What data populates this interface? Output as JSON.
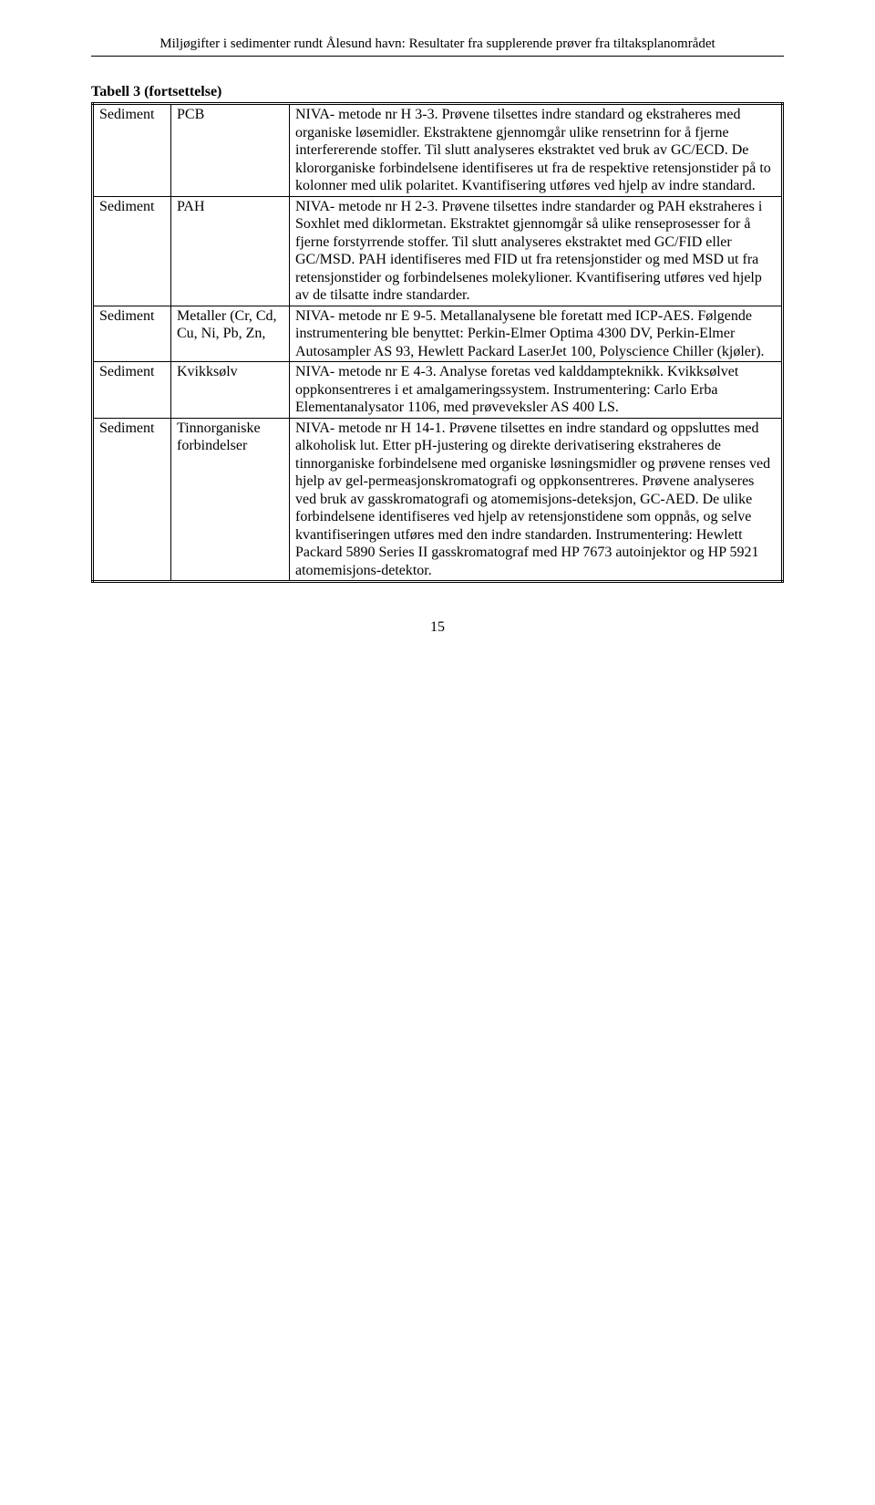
{
  "header": "Miljøgifter i sedimenter rundt Ålesund havn: Resultater fra supplerende prøver fra tiltaksplanområdet",
  "caption": "Tabell 3 (fortsettelse)",
  "rows": [
    {
      "c1": "Sediment",
      "c2": "PCB",
      "c3": "NIVA- metode nr H 3-3. Prøvene tilsettes indre standard og ekstraheres med organiske løsemidler. Ekstraktene gjennomgår ulike rensetrinn for å fjerne interfererende stoffer. Til slutt analyseres ekstraktet ved bruk av GC/ECD. De klororganiske forbindelsene identifiseres ut fra de respektive retensjonstider på to kolonner med ulik polaritet. Kvantifisering utføres ved hjelp av indre standard."
    },
    {
      "c1": "Sediment",
      "c2": "PAH",
      "c3": "NIVA- metode nr H 2-3. Prøvene tilsettes indre standarder og PAH ekstraheres i Soxhlet med diklormetan. Ekstraktet gjennomgår så ulike renseprosesser for å fjerne forstyrrende stoffer. Til slutt analyseres ekstraktet med GC/FID eller GC/MSD. PAH identifiseres med FID ut fra retensjonstider og med MSD ut fra retensjonstider og forbindelsenes molekylioner. Kvantifisering utføres ved hjelp av de tilsatte indre standarder."
    },
    {
      "c1": "Sediment",
      "c2": "Metaller (Cr, Cd, Cu, Ni, Pb, Zn,",
      "c3": "NIVA- metode nr E 9-5. Metallanalysene ble foretatt med ICP-AES. Følgende instrumentering ble benyttet: Perkin-Elmer Optima 4300 DV, Perkin-Elmer Autosampler AS 93, Hewlett Packard LaserJet 100, Polyscience Chiller (kjøler)."
    },
    {
      "c1": "Sediment",
      "c2": "Kvikksølv",
      "c3": "NIVA- metode nr E 4-3. Analyse foretas ved kalddampteknikk. Kvikksølvet oppkonsentreres i et amalgameringssystem. Instrumentering: Carlo Erba Elementanalysator 1106, med prøveveksler AS 400 LS."
    },
    {
      "c1": "Sediment",
      "c2": "Tinnorganiske forbindelser",
      "c3": "NIVA- metode nr H 14-1. Prøvene tilsettes en indre standard og oppsluttes med alkoholisk lut. Etter pH-justering og direkte derivatisering ekstraheres de tinnorganiske forbindelsene med organiske løsningsmidler og prøvene renses ved hjelp av gel-permeasjonskromatografi og oppkonsentreres. Prøvene analyseres ved bruk av gasskromatografi og atomemisjons-deteksjon, GC-AED. De ulike forbindelsene identifiseres ved hjelp av retensjonstidene som oppnås, og selve kvantifiseringen utføres med den indre standarden. Instrumentering: Hewlett Packard 5890 Series II gasskromatograf med HP 7673 autoinjektor og HP 5921 atomemisjons-detektor."
    }
  ],
  "page_number": "15"
}
